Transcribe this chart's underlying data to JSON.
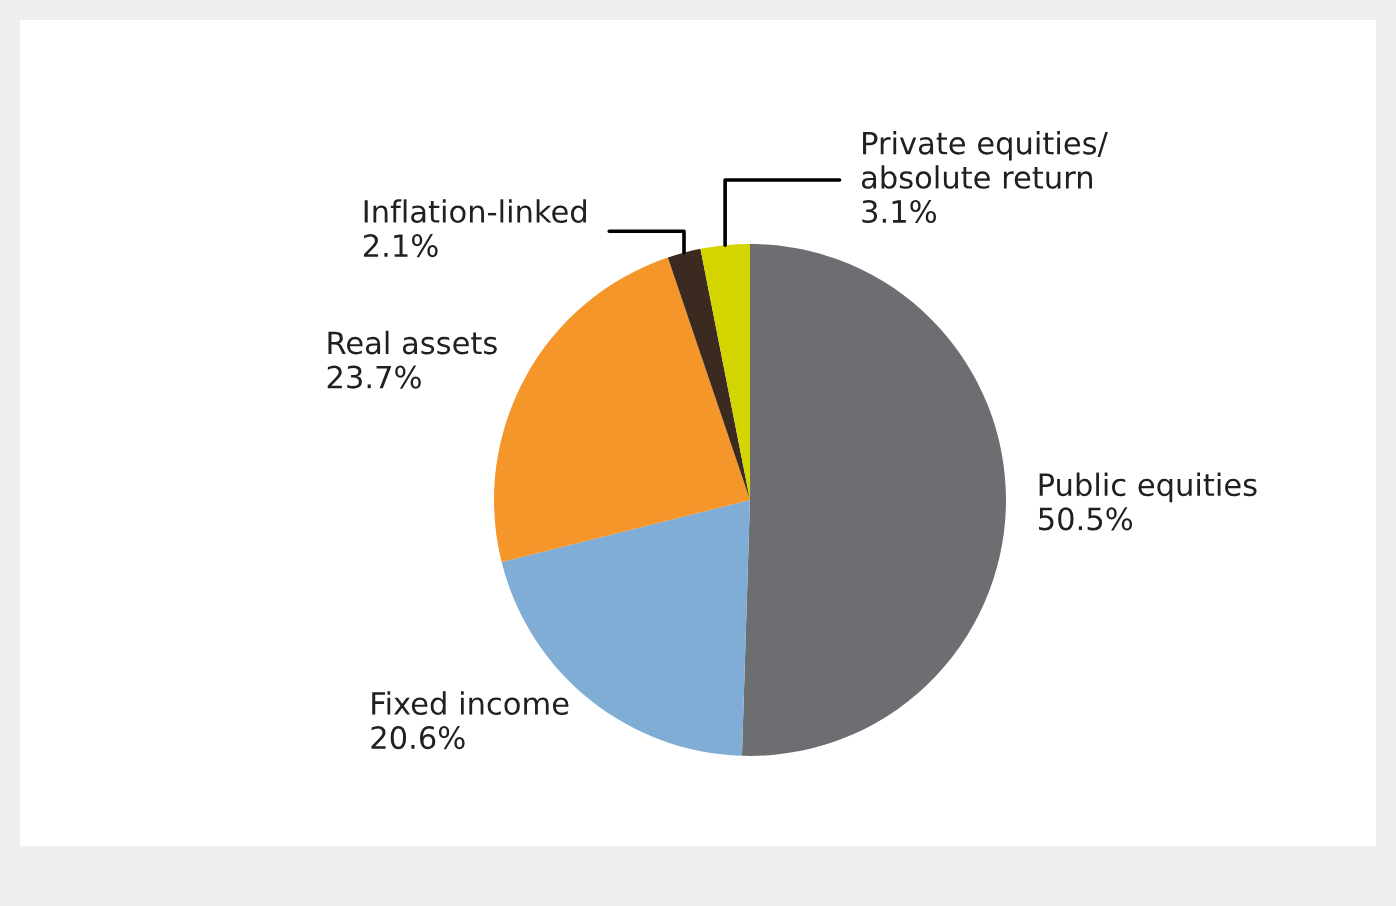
{
  "chart_data": {
    "type": "pie",
    "categories": [
      "Public equities",
      "Fixed income",
      "Real assets",
      "Inflation-linked",
      "Private equities/\nabsolute return"
    ],
    "values": [
      50.5,
      20.6,
      23.7,
      2.1,
      3.1
    ],
    "colors": [
      "#6d6e71",
      "#7fadd6",
      "#f5962a",
      "#3b2a20",
      "#d4d400"
    ],
    "value_labels": [
      "50.5%",
      "20.6%",
      "23.7%",
      "2.1%",
      "3.1%"
    ]
  }
}
